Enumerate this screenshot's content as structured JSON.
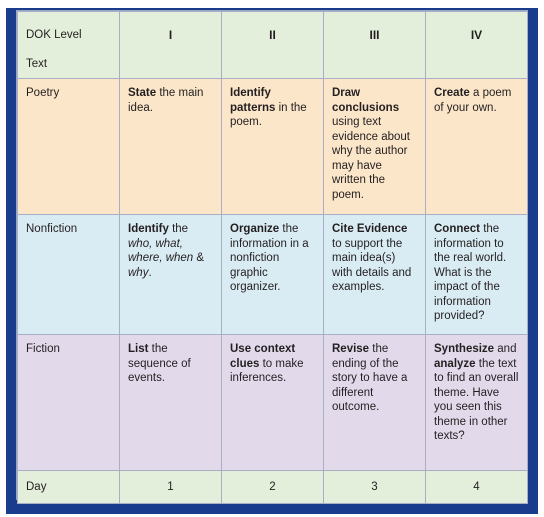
{
  "header": {
    "label_top": "DOK Level",
    "label_bottom": "Text",
    "levels": [
      "I",
      "II",
      "III",
      "IV"
    ]
  },
  "rows": {
    "poetry": {
      "label": "Poetry",
      "c1": {
        "b": "State",
        "t": " the main idea."
      },
      "c2": {
        "b": "Identify patterns",
        "t": " in the poem."
      },
      "c3": {
        "b": "Draw conclusions",
        "t": " using text evidence about why the author may have written the poem."
      },
      "c4": {
        "b": "Create",
        "t": " a poem of your own."
      }
    },
    "nonfiction": {
      "label": "Nonfiction",
      "c1": {
        "b": "Identify",
        "t": " the ",
        "i1": "who, what, where, when",
        "t2": " & ",
        "i2": "why",
        "t3": "."
      },
      "c2": {
        "b": "Organize",
        "t": " the information in a nonfiction graphic organizer."
      },
      "c3": {
        "b": "Cite Evidence",
        "t": " to support the main idea(s) with details and examples."
      },
      "c4": {
        "b": "Connect",
        "t": " the information to the real world. What is the impact of the information provided?"
      }
    },
    "fiction": {
      "label": "Fiction",
      "c1": {
        "b": "List",
        "t": " the sequence of events."
      },
      "c2": {
        "b": "Use context clues",
        "t": " to make inferences."
      },
      "c3": {
        "b": "Revise",
        "t": " the ending of the story to have a different outcome."
      },
      "c4": {
        "b": "Synthesize",
        "t": " and ",
        "b2": "analyze",
        "t2": " the text to find an overall theme. Have you seen this theme in other texts?"
      }
    }
  },
  "day": {
    "label": "Day",
    "values": [
      "1",
      "2",
      "3",
      "4"
    ]
  },
  "colors": {
    "header_row": "#e3efdb",
    "poetry_row": "#fbe6c9",
    "nonfiction_row": "#d9ecf3",
    "fiction_row": "#e2daeb",
    "shadow": "#1a3c8c"
  }
}
